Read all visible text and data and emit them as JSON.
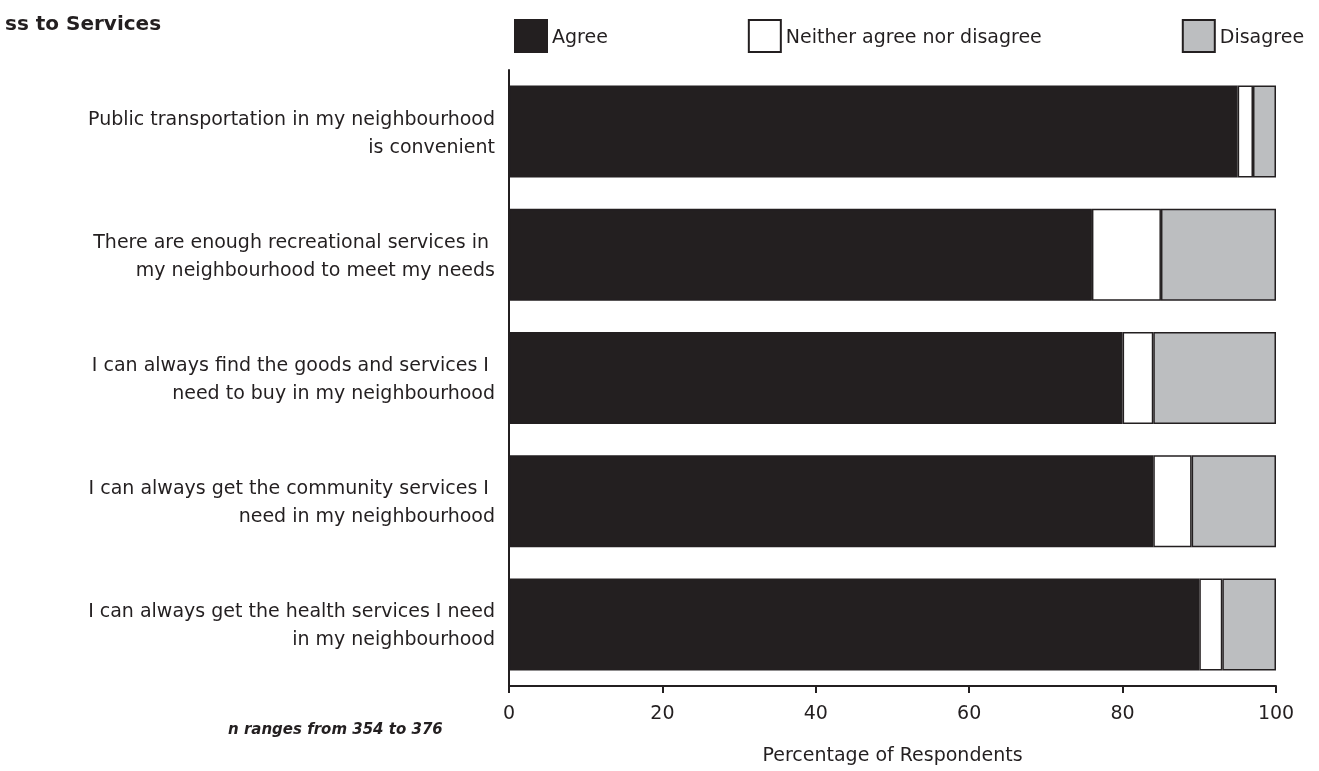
{
  "chart_data": {
    "type": "bar",
    "orientation": "horizontal",
    "stacked": true,
    "title": "ss to Services",
    "xlabel": "Percentage of Respondents",
    "annotations": [
      "n ranges from 354 to 376"
    ],
    "categories": [
      "Public transportation in my neighbourhood is convenient",
      "There are enough recreational services in my neighbourhood to meet my needs",
      "I can always find the goods and services I need to buy in my neighbourhood",
      "I can always get the community services I need in my neighbourhood",
      "I can always get the health services I need in my neighbourhood"
    ],
    "series": [
      {
        "name": "Agree",
        "color": "#231f20",
        "values": [
          95,
          76,
          80,
          84,
          90
        ]
      },
      {
        "name": "Neither agree nor disagree",
        "color": "#ffffff",
        "values": [
          2,
          9,
          4,
          5,
          3
        ]
      },
      {
        "name": "Disagree",
        "color": "#bcbec0",
        "values": [
          3,
          15,
          16,
          11,
          7
        ]
      }
    ],
    "xlim": [
      0,
      100
    ],
    "xticks": [
      0,
      20,
      40,
      60,
      80,
      100
    ],
    "grid": false,
    "legend": "top"
  }
}
